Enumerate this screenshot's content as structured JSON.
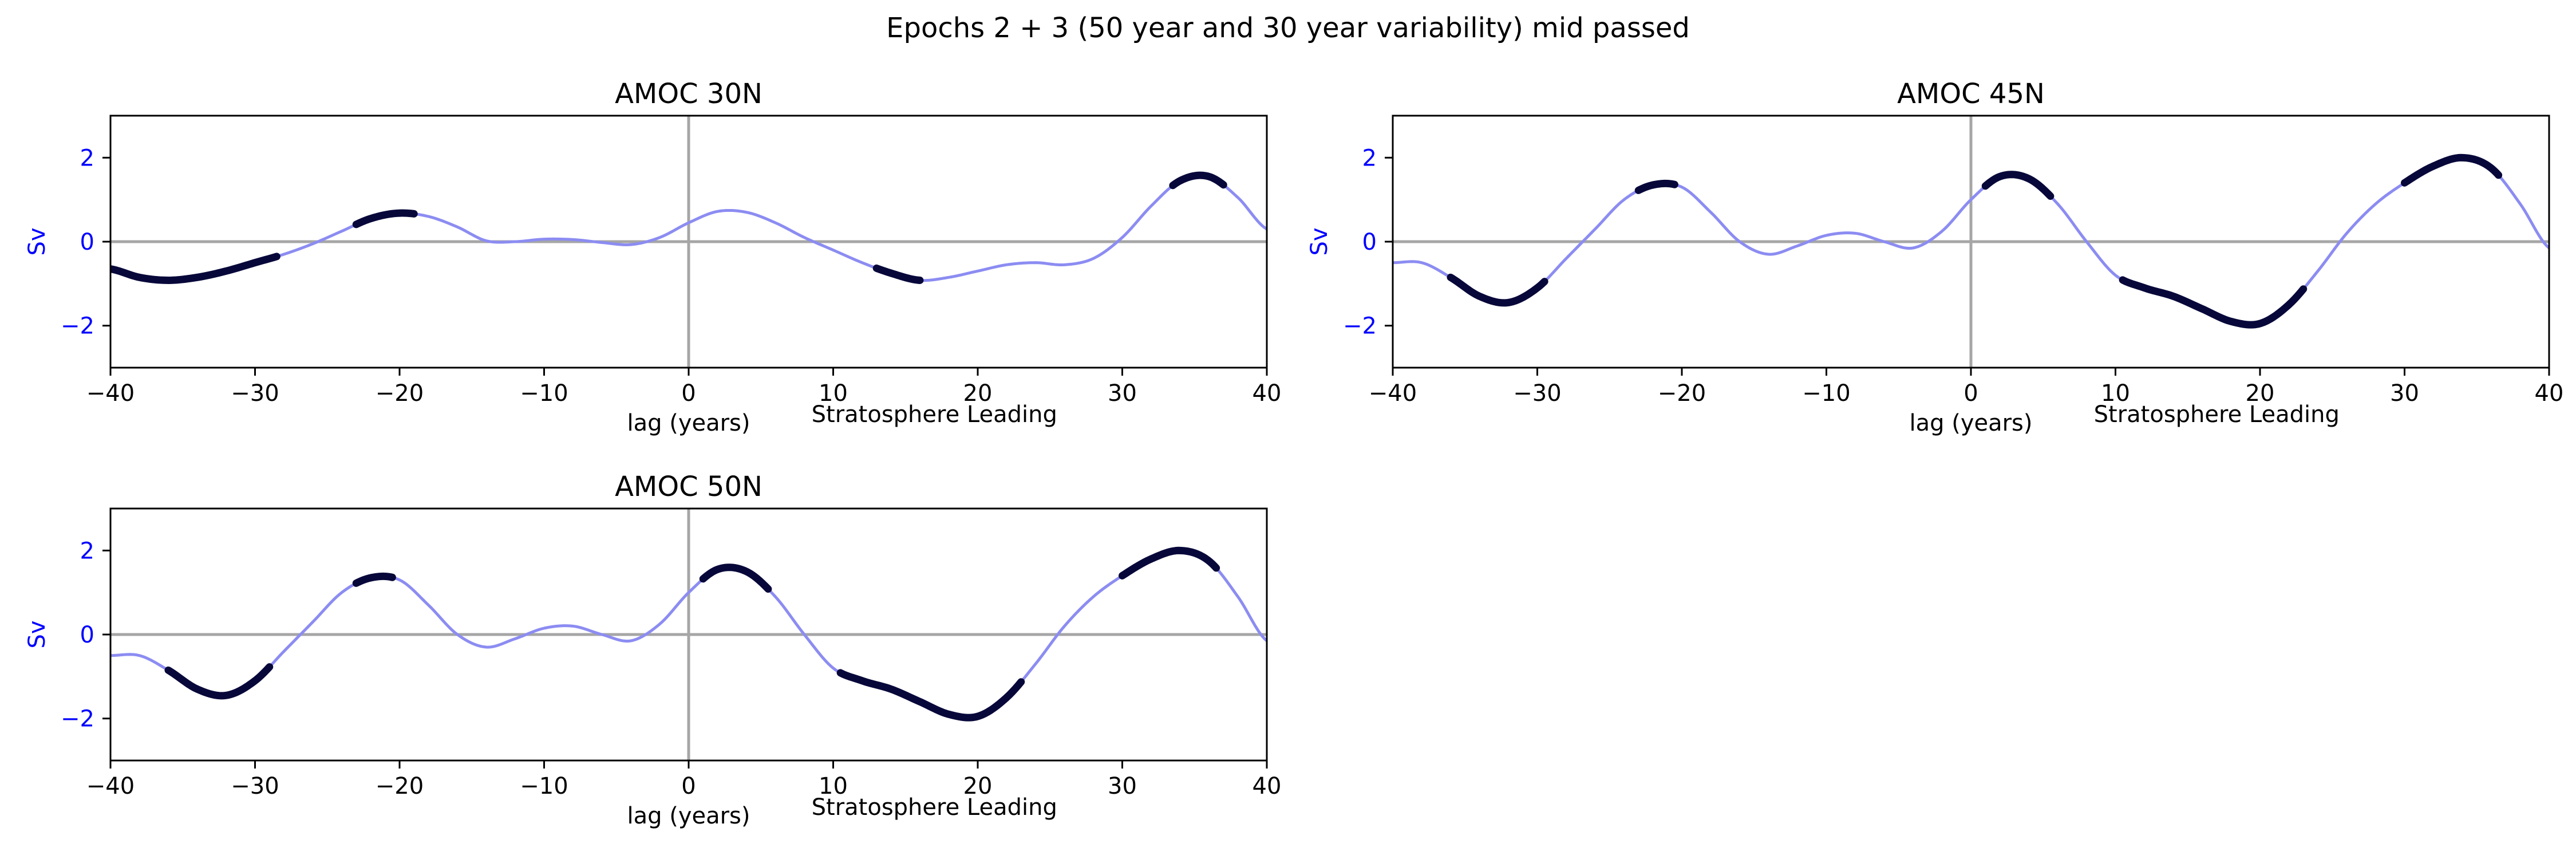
{
  "figure": {
    "title": "Epochs 2 + 3 (50 year and 30 year variability) mid passed"
  },
  "chart_data": [
    {
      "type": "line",
      "title": "AMOC 30N",
      "xlabel": "lag (years)",
      "annotation": "Stratosphere Leading",
      "ylabel": "Sv",
      "xlim": [
        -40,
        40
      ],
      "ylim": [
        -3,
        3
      ],
      "xticks": [
        -40,
        -30,
        -20,
        -10,
        0,
        10,
        20,
        30,
        40
      ],
      "yticks": [
        -2,
        0,
        2
      ],
      "reference_lines": {
        "x": 0,
        "y": 0
      },
      "colors": {
        "line": "#8c8cf2",
        "significant": "#07073a",
        "reference": "#a6a6a6"
      },
      "series": [
        {
          "x": [
            -40,
            -38,
            -36,
            -34,
            -32,
            -30,
            -28,
            -26,
            -24,
            -22,
            -20,
            -18,
            -16,
            -14,
            -12,
            -10,
            -8,
            -6,
            -4,
            -2,
            0,
            2,
            4,
            6,
            8,
            10,
            12,
            14,
            16,
            18,
            20,
            22,
            24,
            26,
            28,
            30,
            32,
            34,
            36,
            38,
            40
          ],
          "y": [
            -0.65,
            -0.85,
            -0.92,
            -0.85,
            -0.7,
            -0.5,
            -0.3,
            -0.05,
            0.25,
            0.55,
            0.68,
            0.6,
            0.35,
            0.02,
            0.0,
            0.06,
            0.05,
            -0.02,
            -0.07,
            0.1,
            0.45,
            0.72,
            0.7,
            0.45,
            0.1,
            -0.2,
            -0.5,
            -0.75,
            -0.92,
            -0.85,
            -0.7,
            -0.55,
            -0.5,
            -0.55,
            -0.4,
            0.1,
            0.85,
            1.45,
            1.55,
            1.05,
            0.3
          ]
        }
      ],
      "significant_ranges": [
        [
          -40,
          -28.5
        ],
        [
          -23,
          -19
        ],
        [
          13,
          16
        ],
        [
          33.5,
          37
        ]
      ]
    },
    {
      "type": "line",
      "title": "AMOC 45N",
      "xlabel": "lag (years)",
      "annotation": "Stratosphere Leading",
      "ylabel": "Sv",
      "xlim": [
        -40,
        40
      ],
      "ylim": [
        -3,
        3
      ],
      "xticks": [
        -40,
        -30,
        -20,
        -10,
        0,
        10,
        20,
        30,
        40
      ],
      "yticks": [
        -2,
        0,
        2
      ],
      "reference_lines": {
        "x": 0,
        "y": 0
      },
      "colors": {
        "line": "#8c8cf2",
        "significant": "#07073a",
        "reference": "#a6a6a6"
      },
      "series": [
        {
          "x": [
            -40,
            -38,
            -36,
            -34,
            -32,
            -30,
            -28,
            -26,
            -24,
            -22,
            -20,
            -18,
            -16,
            -14,
            -12,
            -10,
            -8,
            -6,
            -4,
            -2,
            0,
            2,
            4,
            6,
            8,
            10,
            12,
            14,
            16,
            18,
            20,
            22,
            24,
            26,
            28,
            30,
            32,
            34,
            36,
            38,
            40
          ],
          "y": [
            -0.5,
            -0.5,
            -0.85,
            -1.3,
            -1.45,
            -1.1,
            -0.4,
            0.3,
            1.0,
            1.35,
            1.3,
            0.7,
            0.0,
            -0.3,
            -0.1,
            0.15,
            0.2,
            0.0,
            -0.15,
            0.25,
            1.0,
            1.55,
            1.5,
            0.9,
            0.0,
            -0.8,
            -1.1,
            -1.3,
            -1.6,
            -1.9,
            -1.95,
            -1.5,
            -0.7,
            0.2,
            0.9,
            1.4,
            1.8,
            2.0,
            1.75,
            0.9,
            -0.15
          ]
        }
      ],
      "significant_ranges": [
        [
          -36,
          -29.5
        ],
        [
          -23,
          -20.5
        ],
        [
          1,
          5.5
        ],
        [
          10.5,
          23
        ],
        [
          30,
          36.5
        ]
      ]
    },
    {
      "type": "line",
      "title": "AMOC 50N",
      "xlabel": "lag (years)",
      "annotation": "Stratosphere Leading",
      "ylabel": "Sv",
      "xlim": [
        -40,
        40
      ],
      "ylim": [
        -3,
        3
      ],
      "xticks": [
        -40,
        -30,
        -20,
        -10,
        0,
        10,
        20,
        30,
        40
      ],
      "yticks": [
        -2,
        0,
        2
      ],
      "reference_lines": {
        "x": 0,
        "y": 0
      },
      "colors": {
        "line": "#8c8cf2",
        "significant": "#07073a",
        "reference": "#a6a6a6"
      },
      "series": [
        {
          "x": [
            -40,
            -38,
            -36,
            -34,
            -32,
            -30,
            -28,
            -26,
            -24,
            -22,
            -20,
            -18,
            -16,
            -14,
            -12,
            -10,
            -8,
            -6,
            -4,
            -2,
            0,
            2,
            4,
            6,
            8,
            10,
            12,
            14,
            16,
            18,
            20,
            22,
            24,
            26,
            28,
            30,
            32,
            34,
            36,
            38,
            40
          ],
          "y": [
            -0.5,
            -0.5,
            -0.85,
            -1.3,
            -1.45,
            -1.1,
            -0.4,
            0.3,
            1.0,
            1.35,
            1.3,
            0.7,
            0.0,
            -0.3,
            -0.1,
            0.15,
            0.2,
            0.0,
            -0.15,
            0.25,
            1.0,
            1.55,
            1.5,
            0.9,
            0.0,
            -0.8,
            -1.1,
            -1.3,
            -1.6,
            -1.9,
            -1.95,
            -1.5,
            -0.7,
            0.2,
            0.9,
            1.4,
            1.8,
            2.0,
            1.75,
            0.9,
            -0.15
          ]
        }
      ],
      "significant_ranges": [
        [
          -36,
          -29
        ],
        [
          -23,
          -20.5
        ],
        [
          1,
          5.5
        ],
        [
          10.5,
          23
        ],
        [
          30,
          36.5
        ]
      ]
    }
  ]
}
